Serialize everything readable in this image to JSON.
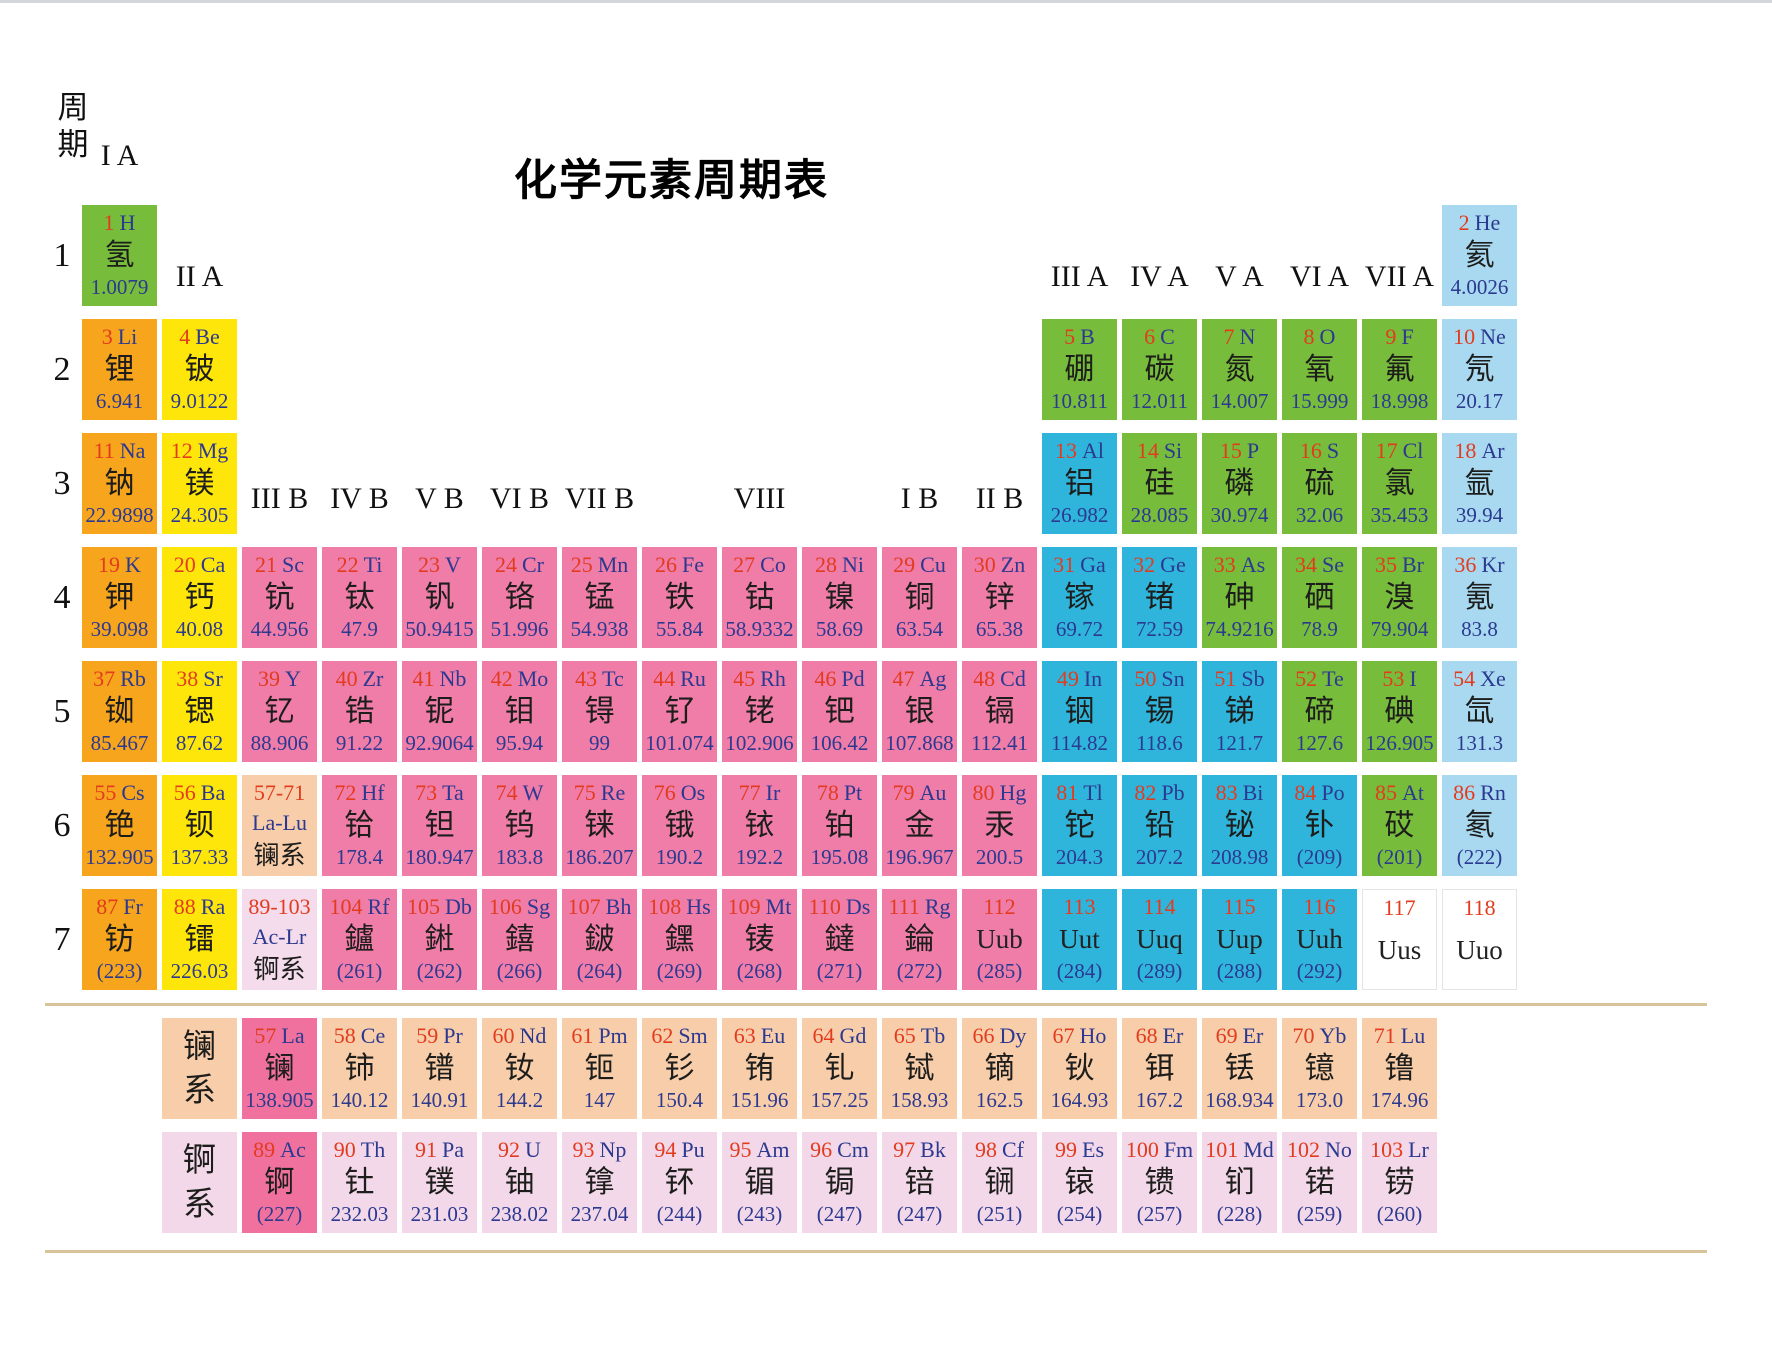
{
  "title": "化学元素周期表",
  "corner_label": "周期",
  "lanthanide_label": "镧系",
  "actinide_label": "锕系",
  "period_numbers": [
    "1",
    "2",
    "3",
    "4",
    "5",
    "6",
    "7"
  ],
  "group_headers": [
    {
      "label": "I A",
      "col": 1,
      "level": "ia"
    },
    {
      "label": "II A",
      "col": 2,
      "level": "row1"
    },
    {
      "label": "III B",
      "col": 3,
      "level": "row3"
    },
    {
      "label": "IV B",
      "col": 4,
      "level": "row3"
    },
    {
      "label": "V B",
      "col": 5,
      "level": "row3"
    },
    {
      "label": "VI B",
      "col": 6,
      "level": "row3"
    },
    {
      "label": "VII B",
      "col": 7,
      "level": "row3"
    },
    {
      "label": "VIII",
      "col": 8,
      "colspan": 3,
      "level": "row3"
    },
    {
      "label": "I B",
      "col": 11,
      "level": "row3"
    },
    {
      "label": "II B",
      "col": 12,
      "level": "row3"
    },
    {
      "label": "III A",
      "col": 13,
      "level": "row1"
    },
    {
      "label": "IV A",
      "col": 14,
      "level": "row1"
    },
    {
      "label": "V A",
      "col": 15,
      "level": "row1"
    },
    {
      "label": "VI A",
      "col": 16,
      "level": "row1"
    },
    {
      "label": "VII A",
      "col": 17,
      "level": "row1"
    }
  ],
  "colors": {
    "alkali_metal": "#F6A51C",
    "alkaline_earth": "#FFE60A",
    "nonmetal_green": "#77BC3B",
    "noble_gas": "#A9D9F1",
    "transition_metal": "#F07CA8",
    "post_transition": "#2FB5DB",
    "lanthanide_row": "#F8CDA9",
    "actinide_row": "#F2D8E8",
    "la_ac_highlight": "#F0719E",
    "actinide_range_cell": "#F5DCEC",
    "unknown_cell": "#FFFFFF",
    "atomic_number_red": "#E23B1E",
    "symbol_mass_blue": "#2B3990",
    "name_black": "#1D1D1B",
    "separator_tan": "#D9C39B"
  },
  "elements": [
    {
      "n": 1,
      "s": "H",
      "c": "氢",
      "m": "1.0079",
      "cat": "nm",
      "p": 1,
      "g": 1
    },
    {
      "n": 2,
      "s": "He",
      "c": "氦",
      "m": "4.0026",
      "cat": "ng",
      "p": 1,
      "g": 18
    },
    {
      "n": 3,
      "s": "Li",
      "c": "锂",
      "m": "6.941",
      "cat": "alk",
      "p": 2,
      "g": 1
    },
    {
      "n": 4,
      "s": "Be",
      "c": "铍",
      "m": "9.0122",
      "cat": "ae",
      "p": 2,
      "g": 2
    },
    {
      "n": 5,
      "s": "B",
      "c": "硼",
      "m": "10.811",
      "cat": "nm",
      "p": 2,
      "g": 13
    },
    {
      "n": 6,
      "s": "C",
      "c": "碳",
      "m": "12.011",
      "cat": "nm",
      "p": 2,
      "g": 14
    },
    {
      "n": 7,
      "s": "N",
      "c": "氮",
      "m": "14.007",
      "cat": "nm",
      "p": 2,
      "g": 15
    },
    {
      "n": 8,
      "s": "O",
      "c": "氧",
      "m": "15.999",
      "cat": "nm",
      "p": 2,
      "g": 16
    },
    {
      "n": 9,
      "s": "F",
      "c": "氟",
      "m": "18.998",
      "cat": "nm",
      "p": 2,
      "g": 17
    },
    {
      "n": 10,
      "s": "Ne",
      "c": "氖",
      "m": "20.17",
      "cat": "ng",
      "p": 2,
      "g": 18
    },
    {
      "n": 11,
      "s": "Na",
      "c": "钠",
      "m": "22.9898",
      "cat": "alk",
      "p": 3,
      "g": 1
    },
    {
      "n": 12,
      "s": "Mg",
      "c": "镁",
      "m": "24.305",
      "cat": "ae",
      "p": 3,
      "g": 2
    },
    {
      "n": 13,
      "s": "Al",
      "c": "铝",
      "m": "26.982",
      "cat": "pt",
      "p": 3,
      "g": 13
    },
    {
      "n": 14,
      "s": "Si",
      "c": "硅",
      "m": "28.085",
      "cat": "nm",
      "p": 3,
      "g": 14
    },
    {
      "n": 15,
      "s": "P",
      "c": "磷",
      "m": "30.974",
      "cat": "nm",
      "p": 3,
      "g": 15
    },
    {
      "n": 16,
      "s": "S",
      "c": "硫",
      "m": "32.06",
      "cat": "nm",
      "p": 3,
      "g": 16
    },
    {
      "n": 17,
      "s": "Cl",
      "c": "氯",
      "m": "35.453",
      "cat": "nm",
      "p": 3,
      "g": 17
    },
    {
      "n": 18,
      "s": "Ar",
      "c": "氩",
      "m": "39.94",
      "cat": "ng",
      "p": 3,
      "g": 18
    },
    {
      "n": 19,
      "s": "K",
      "c": "钾",
      "m": "39.098",
      "cat": "alk",
      "p": 4,
      "g": 1
    },
    {
      "n": 20,
      "s": "Ca",
      "c": "钙",
      "m": "40.08",
      "cat": "ae",
      "p": 4,
      "g": 2
    },
    {
      "n": 21,
      "s": "Sc",
      "c": "钪",
      "m": "44.956",
      "cat": "tm",
      "p": 4,
      "g": 3
    },
    {
      "n": 22,
      "s": "Ti",
      "c": "钛",
      "m": "47.9",
      "cat": "tm",
      "p": 4,
      "g": 4
    },
    {
      "n": 23,
      "s": "V",
      "c": "钒",
      "m": "50.9415",
      "cat": "tm",
      "p": 4,
      "g": 5
    },
    {
      "n": 24,
      "s": "Cr",
      "c": "铬",
      "m": "51.996",
      "cat": "tm",
      "p": 4,
      "g": 6
    },
    {
      "n": 25,
      "s": "Mn",
      "c": "锰",
      "m": "54.938",
      "cat": "tm",
      "p": 4,
      "g": 7
    },
    {
      "n": 26,
      "s": "Fe",
      "c": "铁",
      "m": "55.84",
      "cat": "tm",
      "p": 4,
      "g": 8
    },
    {
      "n": 27,
      "s": "Co",
      "c": "钴",
      "m": "58.9332",
      "cat": "tm",
      "p": 4,
      "g": 9
    },
    {
      "n": 28,
      "s": "Ni",
      "c": "镍",
      "m": "58.69",
      "cat": "tm",
      "p": 4,
      "g": 10
    },
    {
      "n": 29,
      "s": "Cu",
      "c": "铜",
      "m": "63.54",
      "cat": "tm",
      "p": 4,
      "g": 11
    },
    {
      "n": 30,
      "s": "Zn",
      "c": "锌",
      "m": "65.38",
      "cat": "tm",
      "p": 4,
      "g": 12
    },
    {
      "n": 31,
      "s": "Ga",
      "c": "镓",
      "m": "69.72",
      "cat": "pt",
      "p": 4,
      "g": 13
    },
    {
      "n": 32,
      "s": "Ge",
      "c": "锗",
      "m": "72.59",
      "cat": "pt",
      "p": 4,
      "g": 14
    },
    {
      "n": 33,
      "s": "As",
      "c": "砷",
      "m": "74.9216",
      "cat": "nm",
      "p": 4,
      "g": 15
    },
    {
      "n": 34,
      "s": "Se",
      "c": "硒",
      "m": "78.9",
      "cat": "nm",
      "p": 4,
      "g": 16
    },
    {
      "n": 35,
      "s": "Br",
      "c": "溴",
      "m": "79.904",
      "cat": "nm",
      "p": 4,
      "g": 17
    },
    {
      "n": 36,
      "s": "Kr",
      "c": "氪",
      "m": "83.8",
      "cat": "ng",
      "p": 4,
      "g": 18
    },
    {
      "n": 37,
      "s": "Rb",
      "c": "铷",
      "m": "85.467",
      "cat": "alk",
      "p": 5,
      "g": 1
    },
    {
      "n": 38,
      "s": "Sr",
      "c": "锶",
      "m": "87.62",
      "cat": "ae",
      "p": 5,
      "g": 2
    },
    {
      "n": 39,
      "s": "Y",
      "c": "钇",
      "m": "88.906",
      "cat": "tm",
      "p": 5,
      "g": 3
    },
    {
      "n": 40,
      "s": "Zr",
      "c": "锆",
      "m": "91.22",
      "cat": "tm",
      "p": 5,
      "g": 4
    },
    {
      "n": 41,
      "s": "Nb",
      "c": "铌",
      "m": "92.9064",
      "cat": "tm",
      "p": 5,
      "g": 5
    },
    {
      "n": 42,
      "s": "Mo",
      "c": "钼",
      "m": "95.94",
      "cat": "tm",
      "p": 5,
      "g": 6
    },
    {
      "n": 43,
      "s": "Tc",
      "c": "锝",
      "m": "99",
      "cat": "tm",
      "p": 5,
      "g": 7
    },
    {
      "n": 44,
      "s": "Ru",
      "c": "钌",
      "m": "101.074",
      "cat": "tm",
      "p": 5,
      "g": 8
    },
    {
      "n": 45,
      "s": "Rh",
      "c": "铑",
      "m": "102.906",
      "cat": "tm",
      "p": 5,
      "g": 9
    },
    {
      "n": 46,
      "s": "Pd",
      "c": "钯",
      "m": "106.42",
      "cat": "tm",
      "p": 5,
      "g": 10
    },
    {
      "n": 47,
      "s": "Ag",
      "c": "银",
      "m": "107.868",
      "cat": "tm",
      "p": 5,
      "g": 11
    },
    {
      "n": 48,
      "s": "Cd",
      "c": "镉",
      "m": "112.41",
      "cat": "tm",
      "p": 5,
      "g": 12
    },
    {
      "n": 49,
      "s": "In",
      "c": "铟",
      "m": "114.82",
      "cat": "pt",
      "p": 5,
      "g": 13
    },
    {
      "n": 50,
      "s": "Sn",
      "c": "锡",
      "m": "118.6",
      "cat": "pt",
      "p": 5,
      "g": 14
    },
    {
      "n": 51,
      "s": "Sb",
      "c": "锑",
      "m": "121.7",
      "cat": "pt",
      "p": 5,
      "g": 15
    },
    {
      "n": 52,
      "s": "Te",
      "c": "碲",
      "m": "127.6",
      "cat": "nm",
      "p": 5,
      "g": 16
    },
    {
      "n": 53,
      "s": "I",
      "c": "碘",
      "m": "126.905",
      "cat": "nm",
      "p": 5,
      "g": 17
    },
    {
      "n": 54,
      "s": "Xe",
      "c": "氙",
      "m": "131.3",
      "cat": "ng",
      "p": 5,
      "g": 18
    },
    {
      "n": 55,
      "s": "Cs",
      "c": "铯",
      "m": "132.905",
      "cat": "alk",
      "p": 6,
      "g": 1
    },
    {
      "n": 56,
      "s": "Ba",
      "c": "钡",
      "m": "137.33",
      "cat": "ae",
      "p": 6,
      "g": 2
    },
    {
      "range": "57-71",
      "s": "La-Lu",
      "c": "镧系",
      "cat": "lanr",
      "p": 6,
      "g": 3
    },
    {
      "n": 72,
      "s": "Hf",
      "c": "铪",
      "m": "178.4",
      "cat": "tm",
      "p": 6,
      "g": 4
    },
    {
      "n": 73,
      "s": "Ta",
      "c": "钽",
      "m": "180.947",
      "cat": "tm",
      "p": 6,
      "g": 5
    },
    {
      "n": 74,
      "s": "W",
      "c": "钨",
      "m": "183.8",
      "cat": "tm",
      "p": 6,
      "g": 6
    },
    {
      "n": 75,
      "s": "Re",
      "c": "铼",
      "m": "186.207",
      "cat": "tm",
      "p": 6,
      "g": 7
    },
    {
      "n": 76,
      "s": "Os",
      "c": "锇",
      "m": "190.2",
      "cat": "tm",
      "p": 6,
      "g": 8
    },
    {
      "n": 77,
      "s": "Ir",
      "c": "铱",
      "m": "192.2",
      "cat": "tm",
      "p": 6,
      "g": 9
    },
    {
      "n": 78,
      "s": "Pt",
      "c": "铂",
      "m": "195.08",
      "cat": "tm",
      "p": 6,
      "g": 10
    },
    {
      "n": 79,
      "s": "Au",
      "c": "金",
      "m": "196.967",
      "cat": "tm",
      "p": 6,
      "g": 11
    },
    {
      "n": 80,
      "s": "Hg",
      "c": "汞",
      "m": "200.5",
      "cat": "tm",
      "p": 6,
      "g": 12
    },
    {
      "n": 81,
      "s": "Tl",
      "c": "铊",
      "m": "204.3",
      "cat": "pt",
      "p": 6,
      "g": 13
    },
    {
      "n": 82,
      "s": "Pb",
      "c": "铅",
      "m": "207.2",
      "cat": "pt",
      "p": 6,
      "g": 14
    },
    {
      "n": 83,
      "s": "Bi",
      "c": "铋",
      "m": "208.98",
      "cat": "pt",
      "p": 6,
      "g": 15
    },
    {
      "n": 84,
      "s": "Po",
      "c": "钋",
      "m": "(209)",
      "cat": "pt",
      "p": 6,
      "g": 16
    },
    {
      "n": 85,
      "s": "At",
      "c": "砹",
      "m": "(201)",
      "cat": "nm",
      "p": 6,
      "g": 17
    },
    {
      "n": 86,
      "s": "Rn",
      "c": "氡",
      "m": "(222)",
      "cat": "ng",
      "p": 6,
      "g": 18
    },
    {
      "n": 87,
      "s": "Fr",
      "c": "钫",
      "m": "(223)",
      "cat": "alk",
      "p": 7,
      "g": 1
    },
    {
      "n": 88,
      "s": "Ra",
      "c": "镭",
      "m": "226.03",
      "cat": "ae",
      "p": 7,
      "g": 2
    },
    {
      "range": "89-103",
      "s": "Ac-Lr",
      "c": "锕系",
      "cat": "actr",
      "p": 7,
      "g": 3
    },
    {
      "n": 104,
      "s": "Rf",
      "c": "鑪",
      "m": "(261)",
      "cat": "tm",
      "p": 7,
      "g": 4
    },
    {
      "n": 105,
      "s": "Db",
      "c": "𨧀",
      "m": "(262)",
      "cat": "tm",
      "p": 7,
      "g": 5
    },
    {
      "n": 106,
      "s": "Sg",
      "c": "𨭎",
      "m": "(266)",
      "cat": "tm",
      "p": 7,
      "g": 6
    },
    {
      "n": 107,
      "s": "Bh",
      "c": "𨨏",
      "m": "(264)",
      "cat": "tm",
      "p": 7,
      "g": 7
    },
    {
      "n": 108,
      "s": "Hs",
      "c": "𨭆",
      "m": "(269)",
      "cat": "tm",
      "p": 7,
      "g": 8
    },
    {
      "n": 109,
      "s": "Mt",
      "c": "鿏",
      "m": "(268)",
      "cat": "tm",
      "p": 7,
      "g": 9
    },
    {
      "n": 110,
      "s": "Ds",
      "c": "鐽",
      "m": "(271)",
      "cat": "tm",
      "p": 7,
      "g": 10
    },
    {
      "n": 111,
      "s": "Rg",
      "c": "錀",
      "m": "(272)",
      "cat": "tm",
      "p": 7,
      "g": 11
    },
    {
      "n": 112,
      "s": "Uub",
      "m": "(285)",
      "cat": "tm",
      "p": 7,
      "g": 12
    },
    {
      "n": 113,
      "s": "Uut",
      "m": "(284)",
      "cat": "pt",
      "p": 7,
      "g": 13
    },
    {
      "n": 114,
      "s": "Uuq",
      "m": "(289)",
      "cat": "pt",
      "p": 7,
      "g": 14
    },
    {
      "n": 115,
      "s": "Uup",
      "m": "(288)",
      "cat": "pt",
      "p": 7,
      "g": 15
    },
    {
      "n": 116,
      "s": "Uuh",
      "m": "(292)",
      "cat": "pt",
      "p": 7,
      "g": 16
    },
    {
      "n": 117,
      "s": "Uus",
      "cat": "unk",
      "p": 7,
      "g": 17
    },
    {
      "n": 118,
      "s": "Uuo",
      "cat": "unk",
      "p": 7,
      "g": 18
    }
  ],
  "lanthanides": [
    {
      "n": 57,
      "s": "La",
      "c": "镧",
      "m": "138.905",
      "cat": "hl"
    },
    {
      "n": 58,
      "s": "Ce",
      "c": "铈",
      "m": "140.12",
      "cat": "lan"
    },
    {
      "n": 59,
      "s": "Pr",
      "c": "镨",
      "m": "140.91",
      "cat": "lan"
    },
    {
      "n": 60,
      "s": "Nd",
      "c": "钕",
      "m": "144.2",
      "cat": "lan"
    },
    {
      "n": 61,
      "s": "Pm",
      "c": "钷",
      "m": "147",
      "cat": "lan"
    },
    {
      "n": 62,
      "s": "Sm",
      "c": "钐",
      "m": "150.4",
      "cat": "lan"
    },
    {
      "n": 63,
      "s": "Eu",
      "c": "铕",
      "m": "151.96",
      "cat": "lan"
    },
    {
      "n": 64,
      "s": "Gd",
      "c": "钆",
      "m": "157.25",
      "cat": "lan"
    },
    {
      "n": 65,
      "s": "Tb",
      "c": "铽",
      "m": "158.93",
      "cat": "lan"
    },
    {
      "n": 66,
      "s": "Dy",
      "c": "镝",
      "m": "162.5",
      "cat": "lan"
    },
    {
      "n": 67,
      "s": "Ho",
      "c": "钬",
      "m": "164.93",
      "cat": "lan"
    },
    {
      "n": 68,
      "s": "Er",
      "c": "铒",
      "m": "167.2",
      "cat": "lan"
    },
    {
      "n": 69,
      "s": "Er",
      "c": "铥",
      "m": "168.934",
      "cat": "lan"
    },
    {
      "n": 70,
      "s": "Yb",
      "c": "镱",
      "m": "173.0",
      "cat": "lan"
    },
    {
      "n": 71,
      "s": "Lu",
      "c": "镥",
      "m": "174.96",
      "cat": "lan"
    }
  ],
  "actinides": [
    {
      "n": 89,
      "s": "Ac",
      "c": "锕",
      "m": "(227)",
      "cat": "hl"
    },
    {
      "n": 90,
      "s": "Th",
      "c": "钍",
      "m": "232.03",
      "cat": "act"
    },
    {
      "n": 91,
      "s": "Pa",
      "c": "镤",
      "m": "231.03",
      "cat": "act"
    },
    {
      "n": 92,
      "s": "U",
      "c": "铀",
      "m": "238.02",
      "cat": "act"
    },
    {
      "n": 93,
      "s": "Np",
      "c": "镎",
      "m": "237.04",
      "cat": "act"
    },
    {
      "n": 94,
      "s": "Pu",
      "c": "钚",
      "m": "(244)",
      "cat": "act"
    },
    {
      "n": 95,
      "s": "Am",
      "c": "镅",
      "m": "(243)",
      "cat": "act"
    },
    {
      "n": 96,
      "s": "Cm",
      "c": "锔",
      "m": "(247)",
      "cat": "act"
    },
    {
      "n": 97,
      "s": "Bk",
      "c": "锫",
      "m": "(247)",
      "cat": "act"
    },
    {
      "n": 98,
      "s": "Cf",
      "c": "锎",
      "m": "(251)",
      "cat": "act"
    },
    {
      "n": 99,
      "s": "Es",
      "c": "锿",
      "m": "(254)",
      "cat": "act"
    },
    {
      "n": 100,
      "s": "Fm",
      "c": "镄",
      "m": "(257)",
      "cat": "act"
    },
    {
      "n": 101,
      "s": "Md",
      "c": "钔",
      "m": "(228)",
      "cat": "act"
    },
    {
      "n": 102,
      "s": "No",
      "c": "锘",
      "m": "(259)",
      "cat": "act"
    },
    {
      "n": 103,
      "s": "Lr",
      "c": "铹",
      "m": "(260)",
      "cat": "act"
    }
  ]
}
